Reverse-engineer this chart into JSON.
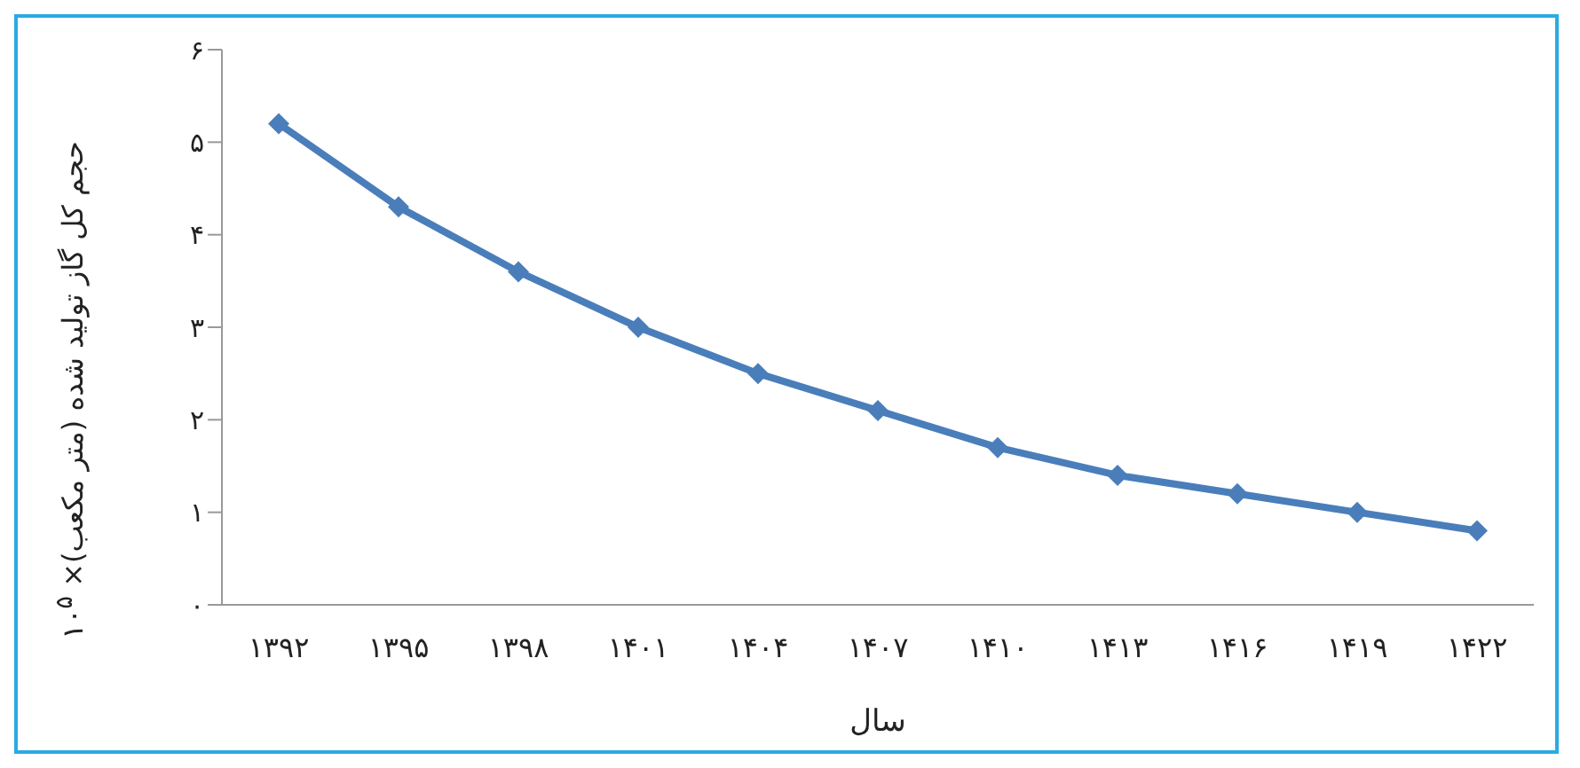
{
  "chart_data": {
    "type": "line",
    "xlabel": "سال",
    "ylabel": "حجم کل گاز تولید شده (متر مکعب)× ۱۰$^{۵}$",
    "categories": [
      "۱۳۹۲",
      "۱۳۹۵",
      "۱۳۹۸",
      "۱۴۰۱",
      "۱۴۰۴",
      "۱۴۰۷",
      "۱۴۱۰",
      "۱۴۱۳",
      "۱۴۱۶",
      "۱۴۱۹",
      "۱۴۲۲"
    ],
    "series": [
      {
        "color": "#4a7ebb",
        "values": [
          5.2,
          4.3,
          3.6,
          3.0,
          2.5,
          2.1,
          1.7,
          1.4,
          1.2,
          1.0,
          0.8
        ]
      }
    ],
    "ylim": [
      0,
      6
    ],
    "yticks": [
      {
        "value": 0,
        "label": "۰"
      },
      {
        "value": 1,
        "label": "۱"
      },
      {
        "value": 2,
        "label": "۲"
      },
      {
        "value": 3,
        "label": "۳"
      },
      {
        "value": 4,
        "label": "۴"
      },
      {
        "value": 5,
        "label": "۵"
      },
      {
        "value": 6,
        "label": "۶"
      }
    ],
    "grid": false,
    "legend": false,
    "marker": "diamond",
    "line_style": "solid"
  }
}
